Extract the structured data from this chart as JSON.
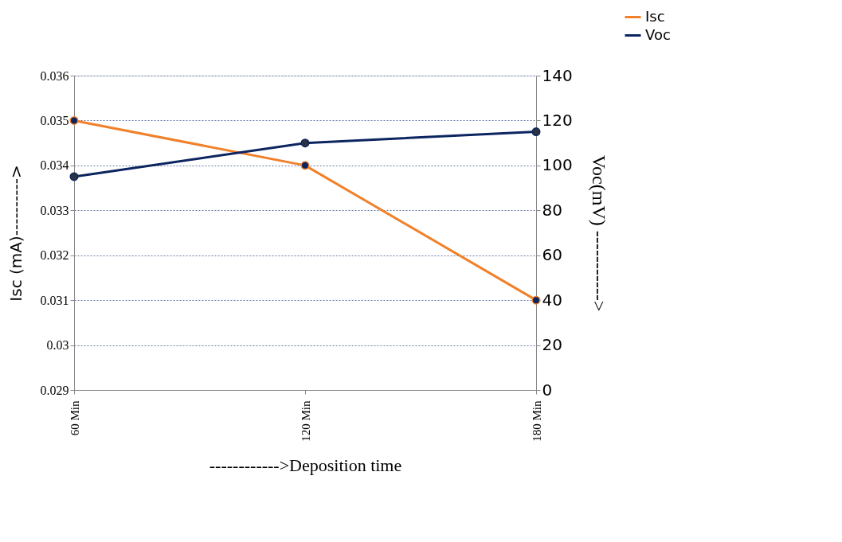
{
  "chart_data": {
    "type": "line",
    "categories": [
      "60 Min",
      "120 Min",
      "180 Min"
    ],
    "xlabel": "------------>Deposition time",
    "ylabel": "Isc (mA)---------->",
    "y2label": "Voc(mV) ----------->",
    "series": [
      {
        "name": "Isc",
        "color": "#f0812a",
        "values": [
          0.035,
          0.034,
          0.031
        ]
      },
      {
        "name": "Voc",
        "color": "#0c2560",
        "values": [
          95,
          110,
          115
        ],
        "axis": "y2"
      }
    ],
    "ylim": [
      0.029,
      0.036
    ],
    "yticks": [
      0.029,
      0.03,
      0.031,
      0.032,
      0.033,
      0.034,
      0.035,
      0.036
    ],
    "y2lim": [
      0,
      140
    ],
    "y2ticks": [
      0,
      20,
      40,
      60,
      80,
      100,
      120,
      140
    ],
    "grid": "y",
    "legend": "top right",
    "marker": "circle",
    "line_style": "solid"
  }
}
